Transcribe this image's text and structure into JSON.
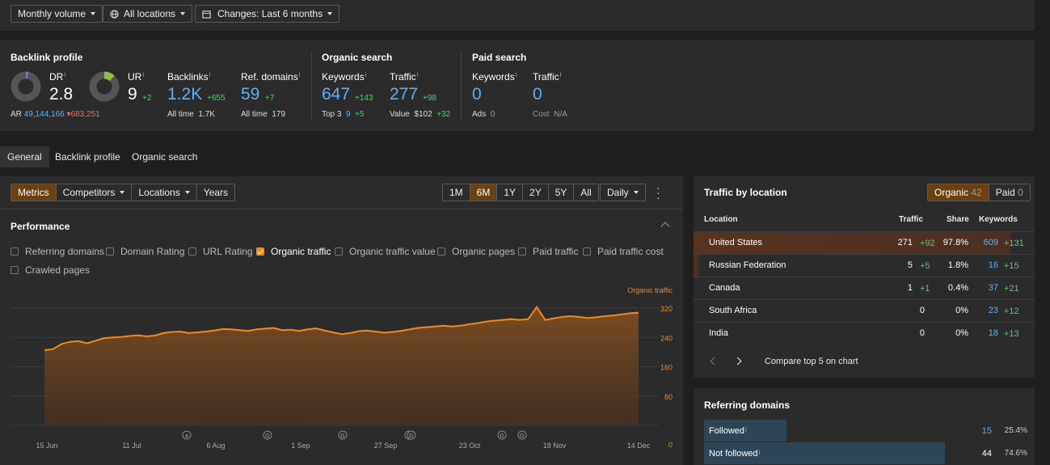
{
  "filters": {
    "volume": "Monthly volume",
    "location": "All locations",
    "changes": "Changes: Last 6 months"
  },
  "backlink_profile": {
    "title": "Backlink profile",
    "dr": {
      "label": "DR",
      "value": "2.8"
    },
    "ur": {
      "label": "UR",
      "value": "9",
      "delta": "+2"
    },
    "ar": {
      "label": "AR",
      "value": "49,144,166",
      "delta": "683,251"
    },
    "backlinks": {
      "label": "Backlinks",
      "value": "1.2K",
      "delta": "+655",
      "alltime_label": "All time",
      "alltime": "1.7K"
    },
    "ref_domains": {
      "label": "Ref. domains",
      "value": "59",
      "delta": "+7",
      "alltime_label": "All time",
      "alltime": "179"
    }
  },
  "organic_search": {
    "title": "Organic search",
    "keywords": {
      "label": "Keywords",
      "value": "647",
      "delta": "+143",
      "top3_label": "Top 3",
      "top3": "9",
      "top3_delta": "+5"
    },
    "traffic": {
      "label": "Traffic",
      "value": "277",
      "delta": "+98",
      "value_label": "Value",
      "value_amount": "$102",
      "value_delta": "+32"
    }
  },
  "paid_search": {
    "title": "Paid search",
    "keywords": {
      "label": "Keywords",
      "value": "0",
      "ads_label": "Ads",
      "ads": "0"
    },
    "traffic": {
      "label": "Traffic",
      "value": "0",
      "cost_label": "Cost",
      "cost": "N/A"
    }
  },
  "tabs": [
    "General",
    "Backlink profile",
    "Organic search"
  ],
  "view_tabs": [
    "Metrics",
    "Competitors",
    "Locations",
    "Years"
  ],
  "ranges": [
    "1M",
    "6M",
    "1Y",
    "2Y",
    "5Y",
    "All"
  ],
  "granularity": "Daily",
  "performance": {
    "title": "Performance",
    "checkboxes": [
      {
        "label": "Referring domains",
        "checked": false
      },
      {
        "label": "Domain Rating",
        "checked": false
      },
      {
        "label": "URL Rating",
        "checked": false
      },
      {
        "label": "Organic traffic",
        "checked": true
      },
      {
        "label": "Organic traffic value",
        "checked": false
      },
      {
        "label": "Organic pages",
        "checked": false
      },
      {
        "label": "Paid traffic",
        "checked": false
      },
      {
        "label": "Paid traffic cost",
        "checked": false
      },
      {
        "label": "Crawled pages",
        "checked": false
      }
    ]
  },
  "chart_data": {
    "type": "area",
    "series": [
      {
        "name": "Organic traffic",
        "color": "#f08a1c",
        "values": [
          205,
          208,
          222,
          228,
          230,
          224,
          231,
          238,
          240,
          241,
          244,
          246,
          243,
          245,
          252,
          255,
          256,
          252,
          254,
          256,
          259,
          263,
          262,
          260,
          258,
          262,
          264,
          266,
          260,
          261,
          258,
          262,
          265,
          259,
          254,
          249,
          252,
          257,
          259,
          256,
          253,
          255,
          258,
          262,
          266,
          268,
          270,
          272,
          270,
          272,
          276,
          279,
          283,
          286,
          288,
          290,
          288,
          290,
          323,
          288,
          292,
          296,
          298,
          296,
          293,
          295,
          298,
          300,
          303,
          306,
          308
        ]
      }
    ],
    "x_ticks": [
      "15 Jun",
      "11 Jul",
      "6 Aug",
      "1 Sep",
      "27 Sep",
      "23 Oct",
      "18 Nov",
      "14 Dec"
    ],
    "y_ticks": [
      "320",
      "240",
      "160",
      "80",
      "0"
    ],
    "ylim": [
      0,
      340
    ],
    "annotations": [
      "a",
      "G",
      "G",
      "G",
      "G",
      "G",
      "G",
      "G"
    ]
  },
  "traffic_by_location": {
    "title": "Traffic by location",
    "organic_label": "Organic",
    "organic_count": "42",
    "paid_label": "Paid",
    "paid_count": "0",
    "headers": {
      "location": "Location",
      "traffic": "Traffic",
      "share": "Share",
      "keywords": "Keywords"
    },
    "rows": [
      {
        "location": "United States",
        "traffic": "271",
        "traffic_delta": "+92",
        "share": "97.8%",
        "keywords": "609",
        "kw_delta": "+131"
      },
      {
        "location": "Russian Federation",
        "traffic": "5",
        "traffic_delta": "+5",
        "share": "1.8%",
        "keywords": "16",
        "kw_delta": "+15"
      },
      {
        "location": "Canada",
        "traffic": "1",
        "traffic_delta": "+1",
        "share": "0.4%",
        "keywords": "37",
        "kw_delta": "+21"
      },
      {
        "location": "South Africa",
        "traffic": "0",
        "traffic_delta": "",
        "share": "0%",
        "keywords": "23",
        "kw_delta": "+12"
      },
      {
        "location": "India",
        "traffic": "0",
        "traffic_delta": "",
        "share": "0%",
        "keywords": "18",
        "kw_delta": "+13"
      }
    ],
    "compare": "Compare top 5 on chart"
  },
  "referring_domains": {
    "title": "Referring domains",
    "rows": [
      {
        "label": "Followed",
        "value": "15",
        "pct": "25.4%",
        "fraction": 0.254
      },
      {
        "label": "Not followed",
        "value": "44",
        "pct": "74.6%",
        "fraction": 0.746
      }
    ]
  },
  "colors": {
    "accent": "#f08a1c",
    "blue": "#5db0f5",
    "green": "#4fcf73",
    "red": "#f06a6a"
  }
}
